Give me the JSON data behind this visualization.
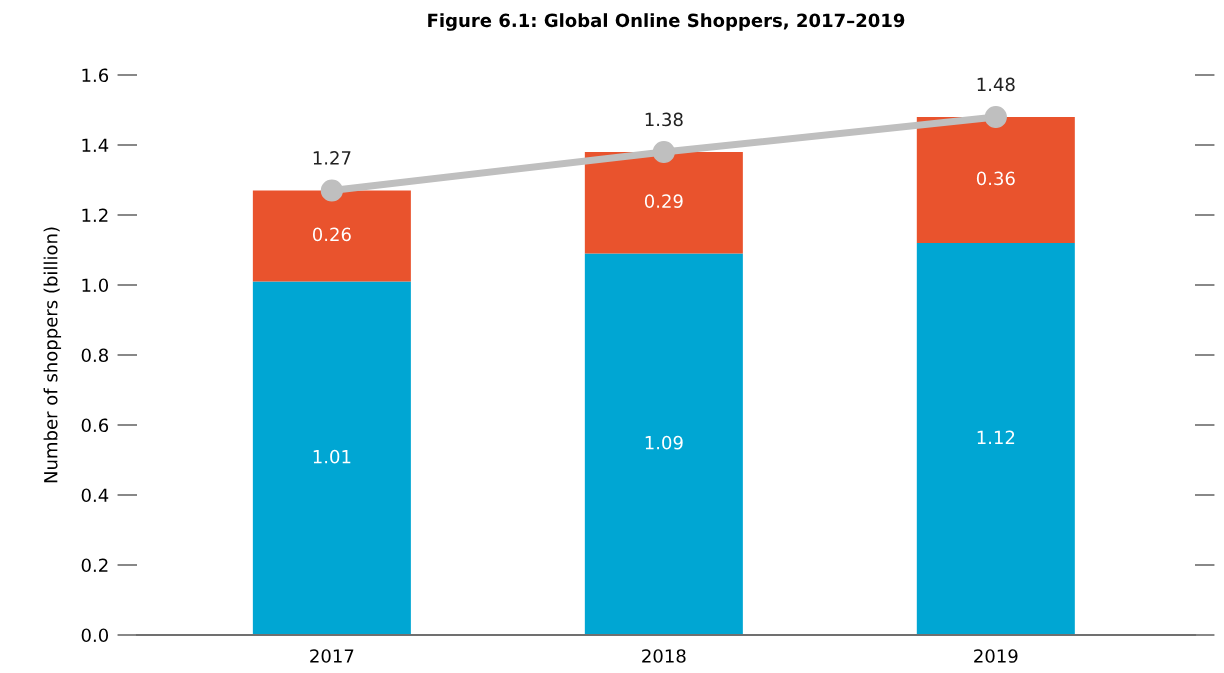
{
  "chart_data": {
    "type": "bar",
    "title": "Figure 6.1: Global Online Shoppers, 2017–2019",
    "ylabel": "Number of shoppers (billion)",
    "categories": [
      "2017",
      "2018",
      "2019"
    ],
    "stacked": true,
    "series": [
      {
        "color": "#00a6d3",
        "values": [
          1.01,
          1.09,
          1.12
        ]
      },
      {
        "color": "#e9532d",
        "values": [
          0.26,
          0.29,
          0.36
        ]
      },
      {
        "type": "line",
        "color": "#bfbfbf",
        "values": [
          1.27,
          1.38,
          1.48
        ],
        "marker": "circle"
      }
    ],
    "ylim": [
      0,
      1.6
    ],
    "yticks": [
      {
        "value": 0,
        "label": "0.0"
      },
      0.2,
      0.4,
      0.6,
      0.8,
      {
        "value": 1,
        "label": "1.0"
      },
      1.2,
      1.4,
      1.6
    ],
    "data_labels": true,
    "grid": false,
    "legend": false
  }
}
